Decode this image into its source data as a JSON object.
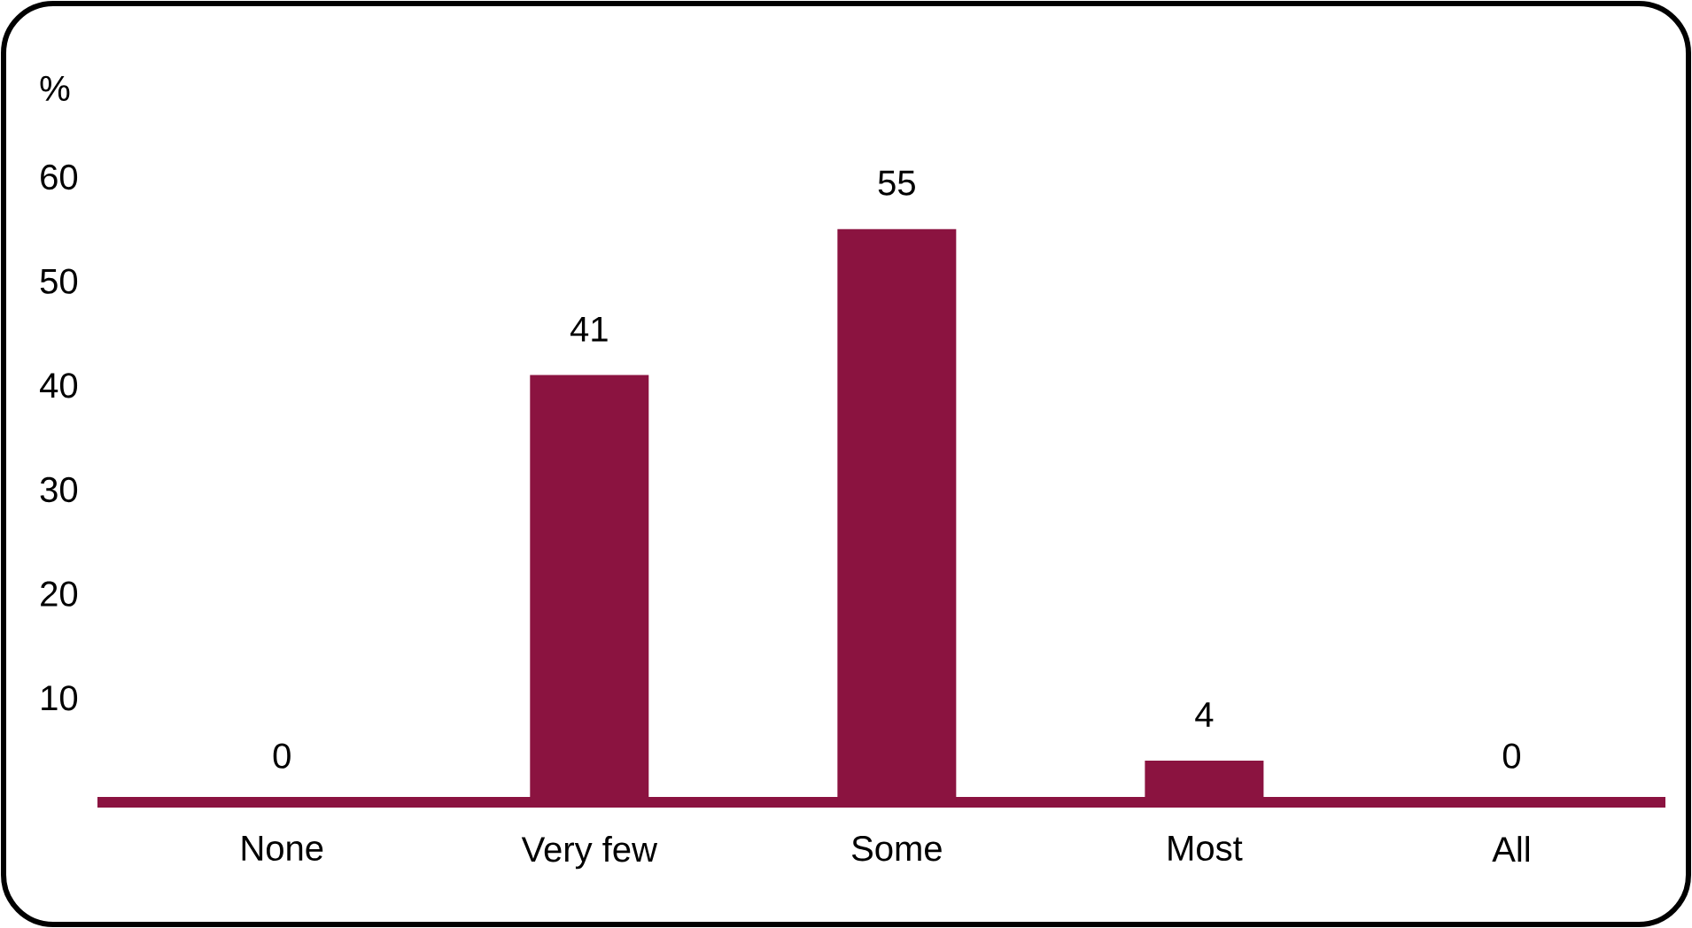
{
  "chart_data": {
    "type": "bar",
    "ylabel": "%",
    "categories": [
      "None",
      "Very few",
      "Some",
      "Most",
      "All"
    ],
    "values": [
      0,
      41,
      55,
      4,
      0
    ],
    "color": "#8b1340",
    "ylim": [
      0,
      60
    ],
    "yticks": [
      10,
      20,
      30,
      40,
      50,
      60
    ],
    "data_labels": true
  }
}
